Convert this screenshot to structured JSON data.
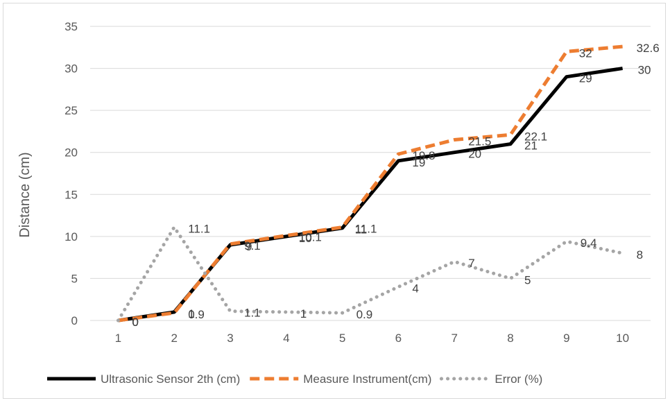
{
  "chart_data": {
    "type": "line",
    "title": "",
    "xlabel": "",
    "ylabel": "Distance (cm)",
    "x": [
      "1",
      "2",
      "3",
      "4",
      "5",
      "6",
      "7",
      "8",
      "9",
      "10"
    ],
    "ylim": [
      0,
      35
    ],
    "yticks": [
      "0",
      "5",
      "10",
      "15",
      "20",
      "25",
      "30",
      "35"
    ],
    "grid": "horizontal",
    "legend_position": "bottom",
    "series": [
      {
        "name": "Ultrasonic Sensor 2th (cm)",
        "values": [
          0,
          1,
          9,
          10,
          11,
          19,
          20,
          21,
          29,
          30
        ],
        "labels": [
          "0",
          "1",
          "9",
          "10",
          "11",
          "19",
          "20",
          "21",
          "29",
          "30"
        ],
        "color": "#000000",
        "style": "solid"
      },
      {
        "name": "Measure Instrument(cm)",
        "values": [
          0,
          0.9,
          9.1,
          10.1,
          11.1,
          19.8,
          21.5,
          22.1,
          32,
          32.6
        ],
        "labels": [
          "0",
          "0.9",
          "9.1",
          "10.1",
          "11.1",
          "19.8",
          "21.5",
          "22.1",
          "32",
          "32.6"
        ],
        "color": "#ed7d31",
        "style": "dashed"
      },
      {
        "name": "Error (%)",
        "values": [
          0,
          11.1,
          1.1,
          1,
          0.9,
          4,
          7,
          5,
          9.4,
          8
        ],
        "labels": [
          "0",
          "11.1",
          "1.1",
          "1",
          "0.9",
          "4",
          "7",
          "5",
          "9.4",
          "8"
        ],
        "color": "#a5a5a5",
        "style": "dotted"
      }
    ]
  }
}
